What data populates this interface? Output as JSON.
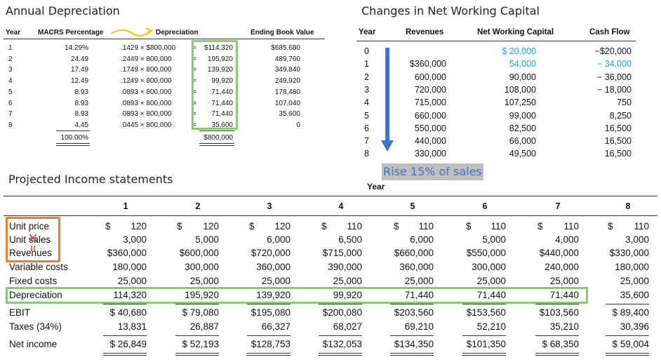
{
  "macrs": {
    "title": "Annual Depreciation",
    "headers": {
      "year": "Year",
      "pct": "MACRS Percentage",
      "dep": "Depreciation",
      "ebv": "Ending Book Value"
    },
    "rows": [
      {
        "year": "1",
        "pct": "14.29%",
        "formula": ".1429 × $800,000",
        "eq": "=",
        "dep": "$114,320",
        "ebv": "$685,680"
      },
      {
        "year": "2",
        "pct": "24.49",
        "formula": ".2449 ×  800,000",
        "eq": "=",
        "dep": "195,920",
        "ebv": "489,760"
      },
      {
        "year": "3",
        "pct": "17.49",
        "formula": ".1749 ×  800,000",
        "eq": "=",
        "dep": "139,920",
        "ebv": "349,840"
      },
      {
        "year": "4",
        "pct": "12.49",
        "formula": ".1249 ×  800,000",
        "eq": "=",
        "dep": "99,920",
        "ebv": "249,920"
      },
      {
        "year": "5",
        "pct": "8.93",
        "formula": ".0893 ×  800,000",
        "eq": "=",
        "dep": "71,440",
        "ebv": "178,480"
      },
      {
        "year": "6",
        "pct": "8.93",
        "formula": ".0893 ×  800,000",
        "eq": "=",
        "dep": "71,440",
        "ebv": "107,040"
      },
      {
        "year": "7",
        "pct": "8.93",
        "formula": ".0893 ×  800,000",
        "eq": "=",
        "dep": "71,440",
        "ebv": "35,600"
      },
      {
        "year": "8",
        "pct": "4.45",
        "formula": ".0445 ×  800,000",
        "eq": "=",
        "dep": "35,600",
        "ebv": "0"
      }
    ],
    "total_pct": "100.00%",
    "total_dep": "$800,000"
  },
  "nwc": {
    "title": "Changes in Net Working Capital",
    "headers": {
      "year": "Year",
      "rev": "Revenues",
      "nwc": "Net Working Capital",
      "cf": "Cash Flow"
    },
    "rows": [
      {
        "year": "0",
        "rev": "",
        "nwc": "$ 20,000",
        "cf": "−$20,000",
        "nwc_blue": true,
        "cf_blue": false
      },
      {
        "year": "1",
        "rev": "$360,000",
        "nwc": "54,000",
        "cf": "−  34,000",
        "nwc_blue": true,
        "cf_blue": true
      },
      {
        "year": "2",
        "rev": "600,000",
        "nwc": "90,000",
        "cf": "−  36,000",
        "nwc_blue": false,
        "cf_blue": false
      },
      {
        "year": "3",
        "rev": "720,000",
        "nwc": "108,000",
        "cf": "−  18,000",
        "nwc_blue": false,
        "cf_blue": false
      },
      {
        "year": "4",
        "rev": "715,000",
        "nwc": "107,250",
        "cf": "750",
        "nwc_blue": false,
        "cf_blue": false
      },
      {
        "year": "5",
        "rev": "660,000",
        "nwc": "99,000",
        "cf": "8,250",
        "nwc_blue": false,
        "cf_blue": false
      },
      {
        "year": "6",
        "rev": "550,000",
        "nwc": "82,500",
        "cf": "16,500",
        "nwc_blue": false,
        "cf_blue": false
      },
      {
        "year": "7",
        "rev": "440,000",
        "nwc": "66,000",
        "cf": "16,500",
        "nwc_blue": false,
        "cf_blue": false
      },
      {
        "year": "8",
        "rev": "330,000",
        "nwc": "49,500",
        "cf": "16,500",
        "nwc_blue": false,
        "cf_blue": false
      }
    ],
    "note": "Rise 15% of sales"
  },
  "income": {
    "title": "Projected Income statements",
    "year_label": "Year",
    "years": [
      "1",
      "2",
      "3",
      "4",
      "5",
      "6",
      "7",
      "8"
    ],
    "rows": [
      {
        "label": "Unit price",
        "dollar": true,
        "values": [
          "120",
          "120",
          "120",
          "110",
          "110",
          "110",
          "110",
          "110"
        ]
      },
      {
        "label": "Unit sales",
        "dollar": false,
        "values": [
          "3,000",
          "5,000",
          "6,000",
          "6,500",
          "6,000",
          "5,000",
          "4,000",
          "3,000"
        ]
      },
      {
        "label": "Revenues",
        "dollar": false,
        "values": [
          "$360,000",
          "$600,000",
          "$720,000",
          "$715,000",
          "$660,000",
          "$550,000",
          "$440,000",
          "$330,000"
        ]
      },
      {
        "label": "Variable costs",
        "dollar": false,
        "values": [
          "180,000",
          "300,000",
          "360,000",
          "390,000",
          "360,000",
          "300,000",
          "240,000",
          "180,000"
        ]
      },
      {
        "label": "Fixed costs",
        "dollar": false,
        "values": [
          "25,000",
          "25,000",
          "25,000",
          "25,000",
          "25,000",
          "25,000",
          "25,000",
          "25,000"
        ]
      },
      {
        "label": "Depreciation",
        "dollar": false,
        "values": [
          "114,320",
          "195,920",
          "139,920",
          "99,920",
          "71,440",
          "71,440",
          "71,440",
          "35,600"
        ]
      },
      {
        "label": "EBIT",
        "dollar": false,
        "values": [
          "$ 40,680",
          "$ 79,080",
          "$195,080",
          "$200,080",
          "$203,560",
          "$153,560",
          "$103,560",
          "$ 89,400"
        ]
      },
      {
        "label": "Taxes (34%)",
        "dollar": false,
        "values": [
          "13,831",
          "26,887",
          "66,327",
          "68,027",
          "69,210",
          "52,210",
          "35,210",
          "30,396"
        ]
      },
      {
        "label": "Net income",
        "dollar": false,
        "values": [
          "$ 26,849",
          "$ 52,193",
          "$128,753",
          "$132,053",
          "$134,350",
          "$101,350",
          "$ 68,350",
          "$ 59,004"
        ]
      }
    ]
  },
  "colors": {
    "accent_blue": "#1fa0e0",
    "green_box": "#8cc87a",
    "orange_box": "#ee7d2d",
    "arrow_blue": "#3f74c8",
    "note_bg": "#bfbfbf",
    "annot_red": "#d92020"
  }
}
